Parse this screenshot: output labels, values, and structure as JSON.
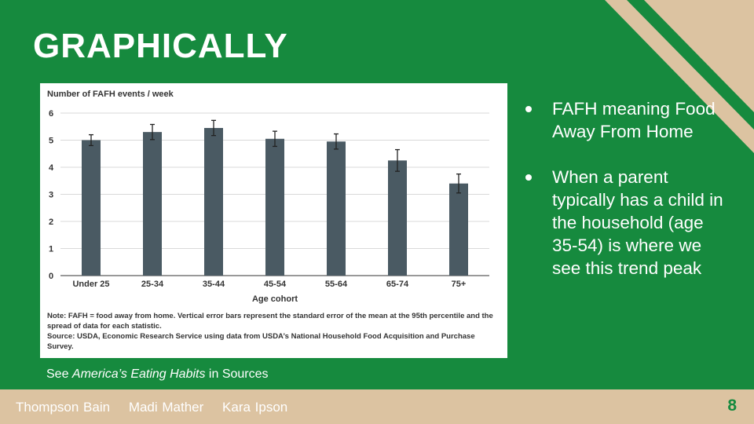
{
  "slide": {
    "title": "GRAPHICALLY",
    "caption_prefix": "See ",
    "caption_source_title": "America’s Eating Habits",
    "caption_suffix": " in Sources",
    "bullets": [
      "FAFH meaning Food Away From Home",
      "When a parent typically has a child in the household (age 35-54) is where we see this trend peak"
    ],
    "authors": [
      "Thompson Bain",
      "Madi Mather",
      "Kara Ipson"
    ],
    "page_number": "8"
  },
  "chart_data": {
    "type": "bar",
    "title": "",
    "ylabel": "Number of FAFH events / week",
    "xlabel": "Age cohort",
    "categories": [
      "Under 25",
      "25-34",
      "35-44",
      "45-54",
      "55-64",
      "65-74",
      "75+"
    ],
    "values": [
      5.0,
      5.3,
      5.45,
      5.05,
      4.95,
      4.25,
      3.4
    ],
    "error": [
      0.2,
      0.28,
      0.28,
      0.28,
      0.28,
      0.4,
      0.35
    ],
    "ylim": [
      0,
      6
    ],
    "yticks": [
      0,
      1,
      2,
      3,
      4,
      5,
      6
    ],
    "grid": true,
    "bar_color": "#4a5a63",
    "notes": [
      "Note: FAFH = food away from home. Vertical error bars represent the standard error of the mean at the 95th percentile and the spread of data for each statistic.",
      "Source: USDA, Economic Research Service using data from USDA’s National Household Food Acquisition and Purchase Survey."
    ]
  },
  "colors": {
    "background": "#168a3e",
    "accent_beige": "#dcc3a1",
    "text": "#ffffff"
  }
}
